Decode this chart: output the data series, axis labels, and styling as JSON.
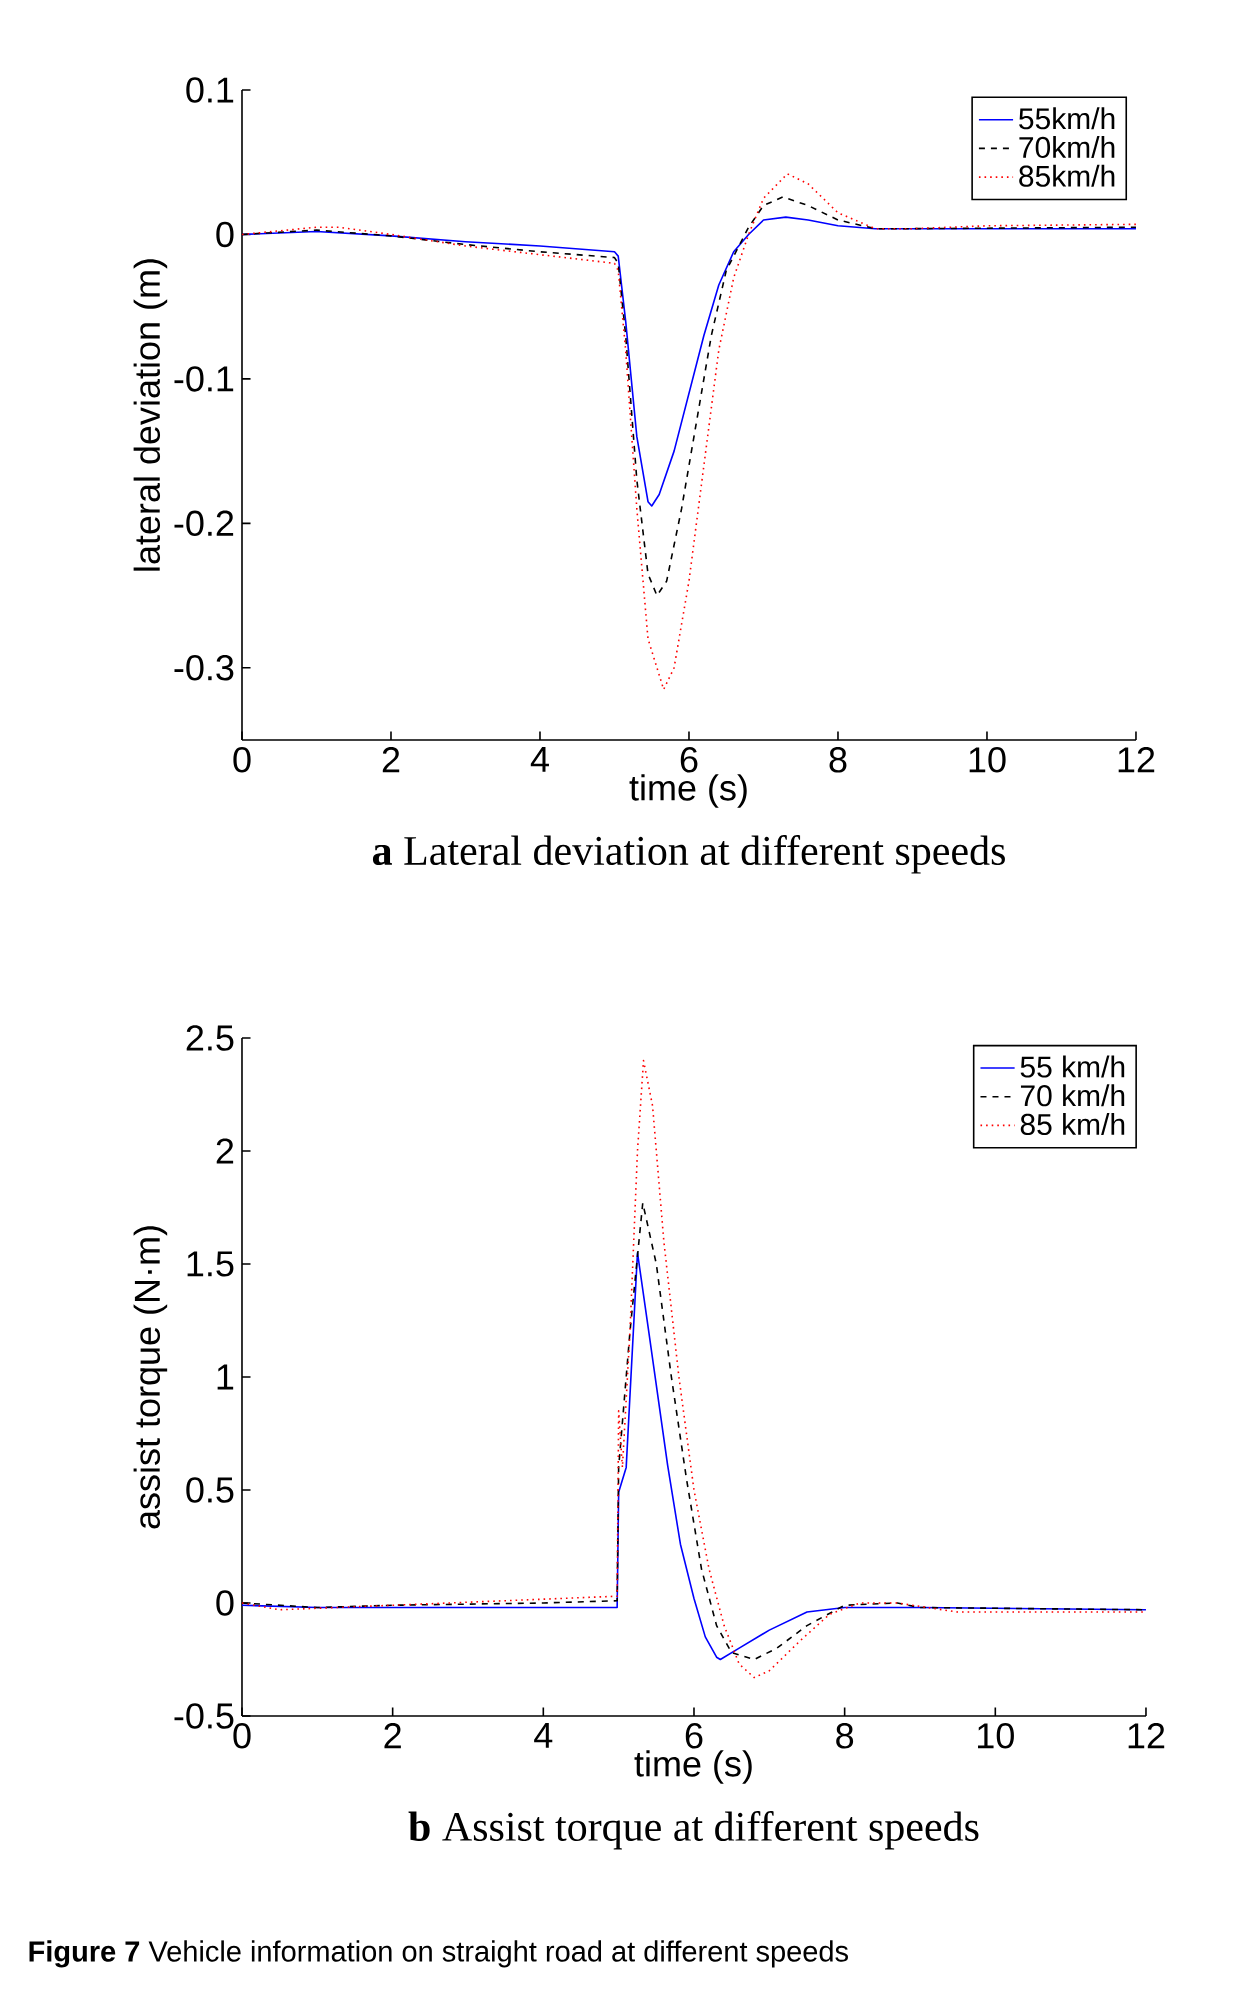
{
  "chart_data": [
    {
      "type": "line",
      "title": "**a** Lateral deviation at different speeds",
      "xlabel": "time (s)",
      "ylabel": "lateral deviation (m)",
      "xlim": [
        0,
        12
      ],
      "ylim": [
        -0.35,
        0.1
      ],
      "xticks": [
        0,
        2,
        4,
        6,
        8,
        10,
        12
      ],
      "yticks": [
        -0.3,
        -0.2,
        -0.1,
        0,
        0.1
      ],
      "legend": "top right",
      "grid": false,
      "series": [
        {
          "name": "55km/h",
          "color": "#0000ff",
          "line_style": "solid",
          "x": [
            0,
            1,
            2,
            3,
            4,
            5,
            5.05,
            5.15,
            5.3,
            5.45,
            5.5,
            5.6,
            5.8,
            6.0,
            6.2,
            6.4,
            6.6,
            6.8,
            7.0,
            7.3,
            7.6,
            8.0,
            8.5,
            9,
            12
          ],
          "values": [
            0,
            0.002,
            -0.001,
            -0.005,
            -0.008,
            -0.012,
            -0.015,
            -0.06,
            -0.14,
            -0.185,
            -0.188,
            -0.18,
            -0.15,
            -0.11,
            -0.07,
            -0.035,
            -0.012,
            0.0,
            0.01,
            0.012,
            0.01,
            0.006,
            0.004,
            0.004,
            0.004
          ]
        },
        {
          "name": "70km/h",
          "color": "#000000",
          "line_style": "dashed",
          "x": [
            0,
            1,
            2,
            3,
            4,
            5,
            5.05,
            5.15,
            5.3,
            5.45,
            5.57,
            5.7,
            5.9,
            6.1,
            6.3,
            6.5,
            6.8,
            7.0,
            7.26,
            7.6,
            8.0,
            8.5,
            9,
            12
          ],
          "values": [
            0,
            0.003,
            -0.001,
            -0.007,
            -0.012,
            -0.016,
            -0.02,
            -0.07,
            -0.17,
            -0.235,
            -0.25,
            -0.24,
            -0.19,
            -0.13,
            -0.07,
            -0.025,
            0.005,
            0.02,
            0.026,
            0.02,
            0.01,
            0.004,
            0.004,
            0.005
          ]
        },
        {
          "name": "85km/h",
          "color": "#ff0000",
          "line_style": "dotted",
          "x": [
            0,
            1,
            1.3,
            2,
            3,
            4,
            5,
            5.05,
            5.15,
            5.3,
            5.45,
            5.66,
            5.8,
            6.0,
            6.2,
            6.4,
            6.6,
            6.8,
            7.0,
            7.32,
            7.6,
            8.0,
            8.5,
            9,
            10,
            12
          ],
          "values": [
            0,
            0.005,
            0.005,
            0,
            -0.008,
            -0.014,
            -0.02,
            -0.025,
            -0.08,
            -0.19,
            -0.28,
            -0.315,
            -0.3,
            -0.24,
            -0.16,
            -0.08,
            -0.03,
            0.0,
            0.025,
            0.042,
            0.035,
            0.015,
            0.004,
            0.004,
            0.006,
            0.007
          ]
        }
      ]
    },
    {
      "type": "line",
      "title": "**b** Assist torque at different speeds",
      "xlabel": "time (s)",
      "ylabel": "assist torque (N·m)",
      "xlim": [
        0,
        12
      ],
      "ylim": [
        -0.5,
        2.5
      ],
      "xticks": [
        0,
        2,
        4,
        6,
        8,
        10,
        12
      ],
      "yticks": [
        -0.5,
        0,
        0.5,
        1,
        1.5,
        2,
        2.5
      ],
      "legend": "top right",
      "grid": false,
      "annotations": [
        "**Figure 7** Vehicle information on straight road at different speeds"
      ],
      "series": [
        {
          "name": "55 km/h",
          "color": "#0000ff",
          "line_style": "solid",
          "x": [
            0,
            1,
            2,
            4,
            4.98,
            5.0,
            5.1,
            5.25,
            5.4,
            5.65,
            5.82,
            6.0,
            6.15,
            6.3,
            6.35,
            6.6,
            7.0,
            7.5,
            8.0,
            9,
            12
          ],
          "values": [
            -0.01,
            -0.02,
            -0.02,
            -0.02,
            -0.02,
            0.49,
            0.6,
            1.55,
            1.2,
            0.61,
            0.26,
            0.02,
            -0.15,
            -0.24,
            -0.25,
            -0.2,
            -0.12,
            -0.04,
            -0.02,
            -0.02,
            -0.03
          ]
        },
        {
          "name": "70 km/h",
          "color": "#000000",
          "line_style": "dashed",
          "x": [
            0,
            1,
            2,
            4,
            4.98,
            5.0,
            5.15,
            5.32,
            5.5,
            5.7,
            5.9,
            6.1,
            6.3,
            6.5,
            6.8,
            7.1,
            7.5,
            8.0,
            8.7,
            9,
            12
          ],
          "values": [
            0,
            -0.02,
            -0.01,
            0.0,
            0.01,
            0.6,
            1.2,
            1.77,
            1.5,
            1.0,
            0.55,
            0.15,
            -0.1,
            -0.22,
            -0.25,
            -0.2,
            -0.1,
            -0.01,
            0,
            -0.02,
            -0.03
          ]
        },
        {
          "name": "85 km/h",
          "color": "#ff0000",
          "line_style": "dotted",
          "x": [
            0,
            0.5,
            2,
            4.98,
            5.0,
            5.05,
            5.15,
            5.25,
            5.33,
            5.45,
            5.6,
            5.8,
            6.0,
            6.2,
            6.4,
            6.6,
            6.8,
            7.0,
            7.4,
            7.8,
            8.2,
            8.7,
            9.5,
            12
          ],
          "values": [
            0,
            -0.03,
            -0.01,
            0.03,
            0.85,
            0.6,
            1.2,
            2.0,
            2.4,
            2.2,
            1.6,
            1.0,
            0.5,
            0.15,
            -0.1,
            -0.27,
            -0.33,
            -0.3,
            -0.17,
            -0.05,
            0,
            0,
            -0.04,
            -0.04
          ]
        }
      ]
    }
  ]
}
